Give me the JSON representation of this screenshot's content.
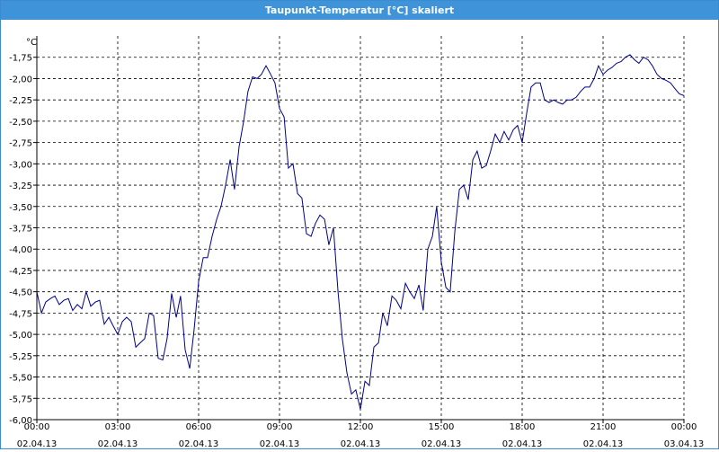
{
  "window": {
    "title": "Taupunkt-Temperatur [°C] skaliert"
  },
  "chart_data": {
    "type": "line",
    "title": "Taupunkt-Temperatur [°C] skaliert",
    "ylabel": "°C",
    "xlabel": "",
    "ylim": [
      -6.0,
      -1.5
    ],
    "yticks": [
      -1.75,
      -2.0,
      -2.25,
      -2.5,
      -2.75,
      -3.0,
      -3.25,
      -3.5,
      -3.75,
      -4.0,
      -4.25,
      -4.5,
      -4.75,
      -5.0,
      -5.25,
      -5.5,
      -5.75,
      -6.0
    ],
    "ytick_labels": [
      "-1,75",
      "-2,00",
      "-2,25",
      "-2,50",
      "-2,75",
      "-3,00",
      "-3,25",
      "-3,50",
      "-3,75",
      "-4,00",
      "-4,25",
      "-4,50",
      "-4,75",
      "-5,00",
      "-5,25",
      "-5,50",
      "-5,75",
      "-6,00"
    ],
    "xlim": [
      0,
      24
    ],
    "xticks": [
      0,
      3,
      6,
      9,
      12,
      15,
      18,
      21,
      24
    ],
    "xtick_labels": [
      [
        "00:00",
        "02.04.13"
      ],
      [
        "03:00",
        "02.04.13"
      ],
      [
        "06:00",
        "02.04.13"
      ],
      [
        "09:00",
        "02.04.13"
      ],
      [
        "12:00",
        "02.04.13"
      ],
      [
        "15:00",
        "02.04.13"
      ],
      [
        "18:00",
        "02.04.13"
      ],
      [
        "21:00",
        "02.04.13"
      ],
      [
        "00:00",
        "03.04.13"
      ]
    ],
    "grid": true,
    "line_color": "#00008b",
    "series": [
      {
        "x": [
          0.0,
          0.17,
          0.33,
          0.5,
          0.67,
          0.83,
          1.0,
          1.17,
          1.33,
          1.5,
          1.67,
          1.83,
          2.0,
          2.17,
          2.33,
          2.5,
          2.67,
          2.83,
          3.0,
          3.17,
          3.33,
          3.5,
          3.67,
          3.83,
          4.0,
          4.17,
          4.33,
          4.5,
          4.67,
          4.83,
          5.0,
          5.17,
          5.33,
          5.5,
          5.67,
          5.83,
          6.0,
          6.17,
          6.33,
          6.5,
          6.67,
          6.83,
          7.0,
          7.17,
          7.33,
          7.5,
          7.67,
          7.83,
          8.0,
          8.17,
          8.33,
          8.5,
          8.67,
          8.83,
          9.0,
          9.17,
          9.33,
          9.5,
          9.67,
          9.83,
          10.0,
          10.17,
          10.33,
          10.5,
          10.67,
          10.83,
          11.0,
          11.17,
          11.33,
          11.5,
          11.67,
          11.83,
          12.0,
          12.17,
          12.33,
          12.5,
          12.67,
          12.83,
          13.0,
          13.17,
          13.33,
          13.5,
          13.67,
          13.83,
          14.0,
          14.17,
          14.33,
          14.5,
          14.67,
          14.83,
          15.0,
          15.17,
          15.33,
          15.5,
          15.67,
          15.83,
          16.0,
          16.17,
          16.33,
          16.5,
          16.67,
          16.83,
          17.0,
          17.17,
          17.33,
          17.5,
          17.67,
          17.83,
          18.0,
          18.17,
          18.33,
          18.5,
          18.67,
          18.83,
          19.0,
          19.17,
          19.33,
          19.5,
          19.67,
          19.83,
          20.0,
          20.17,
          20.33,
          20.5,
          20.67,
          20.83,
          21.0,
          21.17,
          21.33,
          21.5,
          21.67,
          21.83,
          22.0,
          22.17,
          22.33,
          22.5,
          22.67,
          22.83,
          23.0,
          23.17,
          23.33,
          23.5,
          23.67,
          23.83,
          24.0
        ],
        "y": [
          -4.5,
          -4.75,
          -4.62,
          -4.58,
          -4.55,
          -4.65,
          -4.6,
          -4.58,
          -4.72,
          -4.65,
          -4.7,
          -4.5,
          -4.67,
          -4.62,
          -4.6,
          -4.88,
          -4.8,
          -4.9,
          -5.0,
          -4.85,
          -4.8,
          -4.85,
          -5.15,
          -5.1,
          -5.05,
          -4.75,
          -4.78,
          -5.28,
          -5.3,
          -5.05,
          -4.52,
          -4.8,
          -4.55,
          -5.18,
          -5.4,
          -4.95,
          -4.38,
          -4.1,
          -4.1,
          -3.85,
          -3.65,
          -3.5,
          -3.25,
          -2.95,
          -3.3,
          -2.8,
          -2.5,
          -2.15,
          -1.98,
          -2.0,
          -1.95,
          -1.85,
          -1.95,
          -2.05,
          -2.35,
          -2.45,
          -3.05,
          -3.0,
          -3.35,
          -3.4,
          -3.82,
          -3.85,
          -3.7,
          -3.6,
          -3.65,
          -3.95,
          -3.75,
          -4.5,
          -5.05,
          -5.45,
          -5.7,
          -5.65,
          -5.88,
          -5.55,
          -5.6,
          -5.15,
          -5.1,
          -4.75,
          -4.9,
          -4.55,
          -4.6,
          -4.7,
          -4.4,
          -4.5,
          -4.58,
          -4.42,
          -4.72,
          -4.0,
          -3.85,
          -3.5,
          -4.15,
          -4.45,
          -4.5,
          -3.8,
          -3.3,
          -3.25,
          -3.42,
          -2.95,
          -2.85,
          -3.05,
          -3.02,
          -2.85,
          -2.65,
          -2.75,
          -2.62,
          -2.72,
          -2.6,
          -2.55,
          -2.75,
          -2.4,
          -2.1,
          -2.05,
          -2.05,
          -2.25,
          -2.28,
          -2.25,
          -2.28,
          -2.3,
          -2.25,
          -2.25,
          -2.22,
          -2.15,
          -2.1,
          -2.1,
          -2.0,
          -1.85,
          -1.95,
          -1.9,
          -1.87,
          -1.82,
          -1.8,
          -1.75,
          -1.72,
          -1.78,
          -1.82,
          -1.75,
          -1.78,
          -1.85,
          -1.95,
          -2.0,
          -2.02,
          -2.05,
          -2.12,
          -2.18,
          -2.2
        ]
      }
    ]
  }
}
